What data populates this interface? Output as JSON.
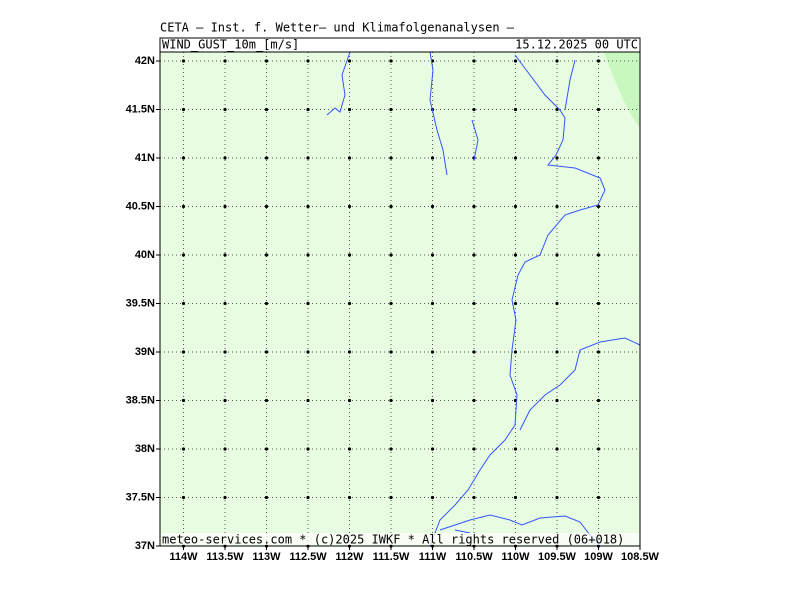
{
  "header": {
    "title": "CETA — Inst. f. Wetter— und Klimafolgenanalysen —",
    "parameter": "WIND_GUST_10m_[m/s]",
    "valid_time": "15.12.2025 00 UTC"
  },
  "footer": "meteo-services.com * (c)2025 IWKF * All rights reserved (06+018)",
  "map": {
    "lon_ticks": [
      {
        "value": -114,
        "label": "114W"
      },
      {
        "value": -113.5,
        "label": "113.5W"
      },
      {
        "value": -113,
        "label": "113W"
      },
      {
        "value": -112.5,
        "label": "112.5W"
      },
      {
        "value": -112,
        "label": "112W"
      },
      {
        "value": -111.5,
        "label": "111.5W"
      },
      {
        "value": -111,
        "label": "111W"
      },
      {
        "value": -110.5,
        "label": "110.5W"
      },
      {
        "value": -110,
        "label": "110W"
      },
      {
        "value": -109.5,
        "label": "109.5W"
      },
      {
        "value": -109,
        "label": "109W"
      },
      {
        "value": -108.5,
        "label": "108.5W"
      }
    ],
    "lat_ticks": [
      {
        "value": 37,
        "label": "37N"
      },
      {
        "value": 37.5,
        "label": "37.5N"
      },
      {
        "value": 38,
        "label": "38N"
      },
      {
        "value": 38.5,
        "label": "38.5N"
      },
      {
        "value": 39,
        "label": "39N"
      },
      {
        "value": 39.5,
        "label": "39.5N"
      },
      {
        "value": 40,
        "label": "40N"
      },
      {
        "value": 40.5,
        "label": "40.5N"
      },
      {
        "value": 41,
        "label": "41N"
      },
      {
        "value": 41.5,
        "label": "41.5N"
      },
      {
        "value": 42,
        "label": "42N"
      }
    ]
  }
}
